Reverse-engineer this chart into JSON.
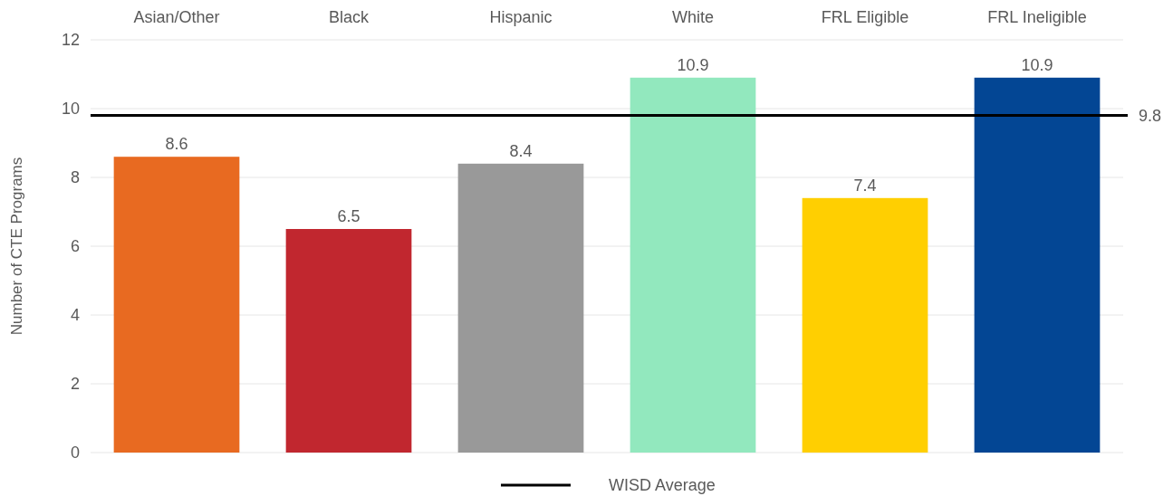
{
  "chart_data": {
    "type": "bar",
    "ylabel": "Number of CTE Programs",
    "categories": [
      "Asian/Other",
      "Black",
      "Hispanic",
      "White",
      "FRL Eligible",
      "FRL Ineligible"
    ],
    "values": [
      8.6,
      6.5,
      8.4,
      10.9,
      7.4,
      10.9
    ],
    "colors": [
      "#e86a21",
      "#c1272f",
      "#999999",
      "#92e8be",
      "#ffcf01",
      "#034694"
    ],
    "ylim": [
      0,
      12
    ],
    "yticks": [
      0,
      2,
      4,
      6,
      8,
      10,
      12
    ],
    "grid": "y",
    "data_labels": true,
    "ref_lines": [
      {
        "axis": "y",
        "value": 9.8,
        "label": "WISD Average",
        "color": "#000000"
      }
    ],
    "annotations": [
      "9.8"
    ],
    "legend": "bottom"
  }
}
